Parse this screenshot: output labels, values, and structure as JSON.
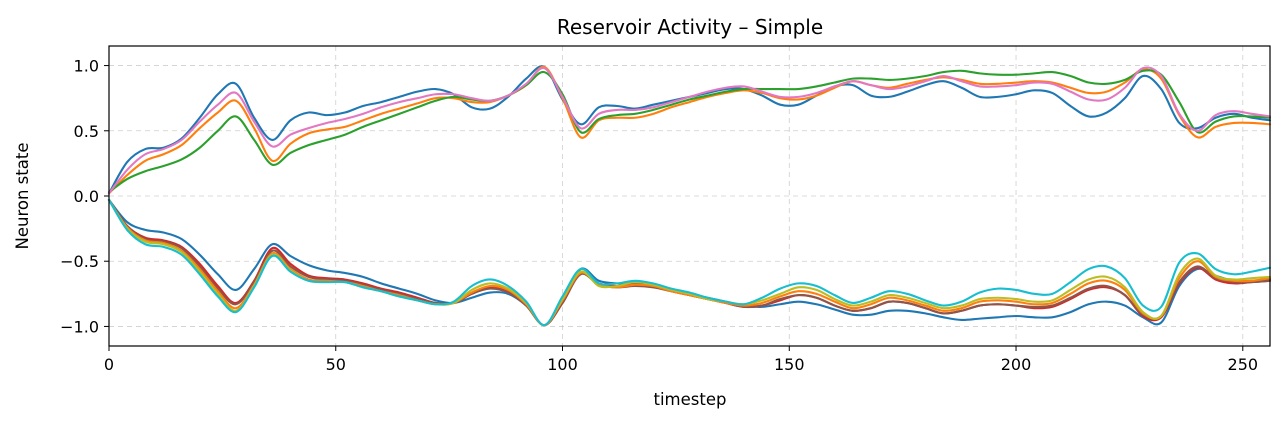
{
  "chart_data": {
    "type": "line",
    "title": "Reservoir Activity – Simple",
    "xlabel": "timestep",
    "ylabel": "Neuron state",
    "xlim": [
      0,
      256
    ],
    "ylim": [
      -1.15,
      1.15
    ],
    "xticks": [
      0,
      50,
      100,
      150,
      200,
      250
    ],
    "xtick_labels": [
      "0",
      "50",
      "100",
      "150",
      "200",
      "250"
    ],
    "yticks": [
      1.0,
      0.5,
      0.0,
      -0.5,
      -1.0
    ],
    "ytick_labels": [
      "1.0",
      "0.5",
      "0.0",
      "−0.5",
      "−1.0"
    ],
    "grid": true,
    "legend": "none",
    "x": [
      0,
      4,
      8,
      12,
      16,
      20,
      24,
      28,
      32,
      36,
      40,
      44,
      48,
      52,
      56,
      60,
      64,
      68,
      72,
      76,
      80,
      84,
      88,
      92,
      96,
      100,
      104,
      108,
      112,
      116,
      120,
      124,
      128,
      132,
      136,
      140,
      144,
      148,
      152,
      156,
      160,
      164,
      168,
      172,
      176,
      180,
      184,
      188,
      192,
      196,
      200,
      204,
      208,
      212,
      216,
      220,
      224,
      228,
      232,
      236,
      240,
      244,
      248,
      252,
      256
    ],
    "series": [
      {
        "color": "#1f77b4",
        "values": [
          0.02,
          0.26,
          0.36,
          0.37,
          0.44,
          0.6,
          0.78,
          0.86,
          0.6,
          0.43,
          0.58,
          0.64,
          0.62,
          0.64,
          0.69,
          0.72,
          0.76,
          0.8,
          0.82,
          0.78,
          0.68,
          0.67,
          0.76,
          0.9,
          0.99,
          0.74,
          0.55,
          0.68,
          0.69,
          0.67,
          0.7,
          0.73,
          0.76,
          0.79,
          0.82,
          0.82,
          0.77,
          0.7,
          0.7,
          0.77,
          0.84,
          0.85,
          0.77,
          0.76,
          0.8,
          0.85,
          0.88,
          0.83,
          0.76,
          0.76,
          0.78,
          0.81,
          0.79,
          0.69,
          0.61,
          0.64,
          0.75,
          0.92,
          0.82,
          0.56,
          0.52,
          0.6,
          0.63,
          0.6,
          0.58
        ]
      },
      {
        "color": "#ff7f0e",
        "values": [
          0.02,
          0.16,
          0.27,
          0.32,
          0.39,
          0.52,
          0.64,
          0.73,
          0.52,
          0.27,
          0.4,
          0.48,
          0.51,
          0.53,
          0.58,
          0.63,
          0.67,
          0.71,
          0.75,
          0.75,
          0.72,
          0.72,
          0.77,
          0.85,
          0.99,
          0.75,
          0.45,
          0.58,
          0.6,
          0.6,
          0.63,
          0.68,
          0.72,
          0.76,
          0.79,
          0.81,
          0.79,
          0.75,
          0.74,
          0.77,
          0.83,
          0.88,
          0.85,
          0.83,
          0.86,
          0.89,
          0.91,
          0.89,
          0.86,
          0.86,
          0.87,
          0.88,
          0.87,
          0.83,
          0.79,
          0.8,
          0.87,
          0.97,
          0.9,
          0.62,
          0.45,
          0.53,
          0.56,
          0.56,
          0.55
        ]
      },
      {
        "color": "#2ca02c",
        "values": [
          0.03,
          0.13,
          0.19,
          0.23,
          0.28,
          0.37,
          0.5,
          0.61,
          0.43,
          0.24,
          0.33,
          0.39,
          0.43,
          0.47,
          0.53,
          0.58,
          0.63,
          0.68,
          0.73,
          0.76,
          0.74,
          0.73,
          0.77,
          0.85,
          0.95,
          0.78,
          0.49,
          0.59,
          0.62,
          0.63,
          0.66,
          0.7,
          0.74,
          0.77,
          0.8,
          0.82,
          0.82,
          0.82,
          0.82,
          0.84,
          0.87,
          0.9,
          0.9,
          0.89,
          0.9,
          0.92,
          0.95,
          0.96,
          0.94,
          0.93,
          0.93,
          0.94,
          0.95,
          0.92,
          0.87,
          0.86,
          0.89,
          0.96,
          0.93,
          0.72,
          0.49,
          0.57,
          0.61,
          0.61,
          0.6
        ]
      },
      {
        "color": "#e377c2",
        "values": [
          0.02,
          0.2,
          0.32,
          0.36,
          0.43,
          0.57,
          0.7,
          0.79,
          0.57,
          0.38,
          0.47,
          0.52,
          0.56,
          0.59,
          0.63,
          0.68,
          0.72,
          0.75,
          0.78,
          0.78,
          0.75,
          0.73,
          0.77,
          0.86,
          0.98,
          0.76,
          0.52,
          0.63,
          0.66,
          0.66,
          0.68,
          0.72,
          0.76,
          0.8,
          0.83,
          0.84,
          0.8,
          0.76,
          0.76,
          0.79,
          0.84,
          0.88,
          0.85,
          0.82,
          0.84,
          0.88,
          0.92,
          0.88,
          0.84,
          0.84,
          0.85,
          0.87,
          0.86,
          0.8,
          0.74,
          0.74,
          0.83,
          0.98,
          0.92,
          0.63,
          0.5,
          0.62,
          0.65,
          0.63,
          0.61
        ]
      },
      {
        "color": "#1f77b4",
        "values": [
          -0.03,
          -0.2,
          -0.26,
          -0.28,
          -0.33,
          -0.45,
          -0.6,
          -0.72,
          -0.56,
          -0.37,
          -0.46,
          -0.53,
          -0.57,
          -0.59,
          -0.62,
          -0.67,
          -0.71,
          -0.75,
          -0.8,
          -0.82,
          -0.78,
          -0.74,
          -0.75,
          -0.84,
          -0.99,
          -0.81,
          -0.56,
          -0.65,
          -0.67,
          -0.67,
          -0.69,
          -0.72,
          -0.75,
          -0.78,
          -0.81,
          -0.84,
          -0.85,
          -0.83,
          -0.81,
          -0.83,
          -0.87,
          -0.91,
          -0.91,
          -0.88,
          -0.88,
          -0.9,
          -0.93,
          -0.95,
          -0.94,
          -0.93,
          -0.92,
          -0.93,
          -0.93,
          -0.89,
          -0.83,
          -0.81,
          -0.84,
          -0.93,
          -0.97,
          -0.69,
          -0.56,
          -0.61,
          -0.65,
          -0.65,
          -0.64
        ]
      },
      {
        "color": "#d62728",
        "values": [
          -0.03,
          -0.23,
          -0.32,
          -0.34,
          -0.39,
          -0.52,
          -0.69,
          -0.82,
          -0.65,
          -0.4,
          -0.52,
          -0.61,
          -0.63,
          -0.64,
          -0.67,
          -0.71,
          -0.74,
          -0.78,
          -0.82,
          -0.82,
          -0.75,
          -0.7,
          -0.73,
          -0.83,
          -0.99,
          -0.82,
          -0.59,
          -0.67,
          -0.69,
          -0.68,
          -0.69,
          -0.73,
          -0.76,
          -0.79,
          -0.82,
          -0.85,
          -0.84,
          -0.8,
          -0.76,
          -0.78,
          -0.84,
          -0.88,
          -0.86,
          -0.81,
          -0.82,
          -0.86,
          -0.9,
          -0.88,
          -0.84,
          -0.83,
          -0.84,
          -0.86,
          -0.85,
          -0.79,
          -0.72,
          -0.7,
          -0.76,
          -0.92,
          -0.93,
          -0.67,
          -0.55,
          -0.64,
          -0.67,
          -0.66,
          -0.65
        ]
      },
      {
        "color": "#8c564b",
        "values": [
          -0.03,
          -0.23,
          -0.33,
          -0.35,
          -0.4,
          -0.54,
          -0.71,
          -0.83,
          -0.66,
          -0.42,
          -0.54,
          -0.62,
          -0.64,
          -0.65,
          -0.68,
          -0.72,
          -0.75,
          -0.79,
          -0.82,
          -0.82,
          -0.75,
          -0.71,
          -0.74,
          -0.84,
          -0.99,
          -0.82,
          -0.6,
          -0.68,
          -0.7,
          -0.69,
          -0.7,
          -0.73,
          -0.76,
          -0.79,
          -0.82,
          -0.85,
          -0.84,
          -0.79,
          -0.76,
          -0.78,
          -0.84,
          -0.88,
          -0.86,
          -0.81,
          -0.82,
          -0.86,
          -0.9,
          -0.88,
          -0.84,
          -0.83,
          -0.84,
          -0.85,
          -0.84,
          -0.78,
          -0.71,
          -0.69,
          -0.76,
          -0.91,
          -0.92,
          -0.66,
          -0.54,
          -0.63,
          -0.66,
          -0.66,
          -0.65
        ]
      },
      {
        "color": "#ff7f0e",
        "values": [
          -0.03,
          -0.24,
          -0.34,
          -0.36,
          -0.42,
          -0.56,
          -0.73,
          -0.86,
          -0.68,
          -0.44,
          -0.56,
          -0.64,
          -0.65,
          -0.66,
          -0.69,
          -0.73,
          -0.76,
          -0.8,
          -0.83,
          -0.82,
          -0.74,
          -0.69,
          -0.72,
          -0.83,
          -0.99,
          -0.8,
          -0.59,
          -0.68,
          -0.7,
          -0.68,
          -0.69,
          -0.73,
          -0.76,
          -0.79,
          -0.82,
          -0.84,
          -0.82,
          -0.77,
          -0.73,
          -0.75,
          -0.81,
          -0.86,
          -0.83,
          -0.78,
          -0.8,
          -0.84,
          -0.88,
          -0.86,
          -0.81,
          -0.8,
          -0.81,
          -0.83,
          -0.82,
          -0.75,
          -0.67,
          -0.65,
          -0.72,
          -0.9,
          -0.92,
          -0.63,
          -0.5,
          -0.62,
          -0.65,
          -0.65,
          -0.63
        ]
      },
      {
        "color": "#bcbd22",
        "values": [
          -0.03,
          -0.25,
          -0.35,
          -0.37,
          -0.43,
          -0.58,
          -0.75,
          -0.88,
          -0.69,
          -0.45,
          -0.57,
          -0.65,
          -0.66,
          -0.66,
          -0.7,
          -0.73,
          -0.77,
          -0.8,
          -0.83,
          -0.82,
          -0.72,
          -0.67,
          -0.71,
          -0.82,
          -0.99,
          -0.79,
          -0.58,
          -0.69,
          -0.69,
          -0.66,
          -0.68,
          -0.72,
          -0.75,
          -0.79,
          -0.81,
          -0.83,
          -0.8,
          -0.75,
          -0.7,
          -0.72,
          -0.79,
          -0.84,
          -0.81,
          -0.76,
          -0.78,
          -0.82,
          -0.86,
          -0.84,
          -0.79,
          -0.78,
          -0.79,
          -0.81,
          -0.8,
          -0.72,
          -0.64,
          -0.62,
          -0.7,
          -0.89,
          -0.92,
          -0.6,
          -0.48,
          -0.61,
          -0.64,
          -0.63,
          -0.62
        ]
      },
      {
        "color": "#17becf",
        "values": [
          -0.03,
          -0.26,
          -0.37,
          -0.39,
          -0.45,
          -0.6,
          -0.77,
          -0.89,
          -0.7,
          -0.46,
          -0.58,
          -0.65,
          -0.66,
          -0.66,
          -0.7,
          -0.73,
          -0.77,
          -0.8,
          -0.83,
          -0.81,
          -0.69,
          -0.64,
          -0.69,
          -0.81,
          -0.99,
          -0.77,
          -0.56,
          -0.67,
          -0.67,
          -0.65,
          -0.67,
          -0.71,
          -0.74,
          -0.78,
          -0.81,
          -0.83,
          -0.78,
          -0.71,
          -0.67,
          -0.69,
          -0.76,
          -0.82,
          -0.78,
          -0.73,
          -0.75,
          -0.8,
          -0.84,
          -0.81,
          -0.74,
          -0.71,
          -0.72,
          -0.75,
          -0.75,
          -0.66,
          -0.56,
          -0.54,
          -0.63,
          -0.84,
          -0.85,
          -0.51,
          -0.44,
          -0.56,
          -0.6,
          -0.58,
          -0.55
        ]
      }
    ]
  }
}
